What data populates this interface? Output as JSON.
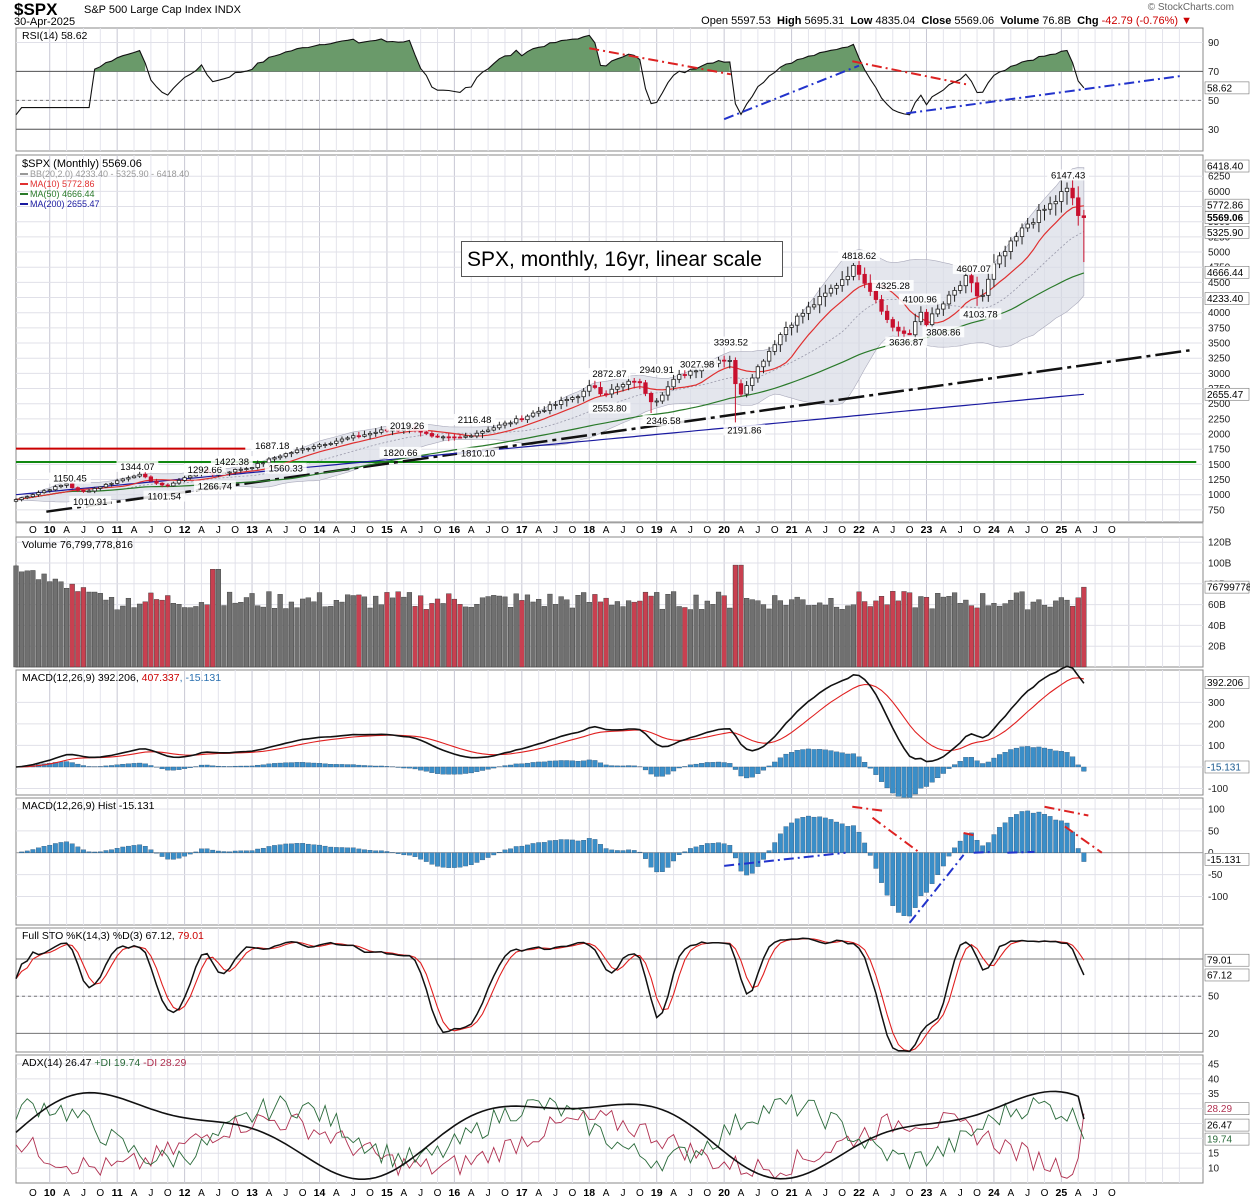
{
  "header": {
    "symbol": "$SPX",
    "description": "S&P 500 Large Cap Index INDX",
    "date": "30-Apr-2025",
    "open_label": "Open",
    "open": "5597.53",
    "high_label": "High",
    "high": "5695.31",
    "low_label": "Low",
    "low": "4835.04",
    "close_label": "Close",
    "close": "5569.06",
    "volume_label": "Volume",
    "volume": "76.8B",
    "chg_label": "Chg",
    "chg": "-42.79 (-0.76%)",
    "logo": "© StockCharts.com"
  },
  "overlay_text": "SPX, monthly, 16yr, linear scale",
  "colors": {
    "up_candle": "#ffffff",
    "down_candle": "#c8102e",
    "ma10": "#e03030",
    "ma50": "#2a7a2a",
    "ma200": "#1a1aa0",
    "bb_fill": "#d8dce6",
    "grid": "#d0d0d8",
    "vol_down": "#c84050",
    "vol_up": "#707070",
    "macd_hist": "#3a8ec8",
    "trend_red": "#dd2222",
    "trend_blue": "#2233cc",
    "resistance": "#cc0000",
    "support": "#118811"
  },
  "chart_data": [
    {
      "type": "line",
      "panel": "rsi",
      "title": "RSI(14) 58.62",
      "yticks": [
        30,
        50,
        70,
        90
      ],
      "ylim": [
        15,
        100
      ],
      "last_label": "58.62",
      "reference_lines": [
        30,
        70
      ]
    },
    {
      "type": "candlestick",
      "panel": "price",
      "title": "$SPX (Monthly) 5569.06",
      "legend": [
        {
          "name": "BB(20,2.0) 4233.40 - 5325.90 - 6418.40",
          "color": "#999999"
        },
        {
          "name": "MA(10) 5772.86",
          "color": "#e03030"
        },
        {
          "name": "MA(50) 4666.44",
          "color": "#2a7a2a"
        },
        {
          "name": "MA(200) 2655.47",
          "color": "#1a1aa0"
        }
      ],
      "ylim": [
        550,
        6600
      ],
      "yticks": [
        750,
        1000,
        1250,
        1500,
        1750,
        2000,
        2250,
        2500,
        2750,
        3000,
        3250,
        3500,
        3750,
        4000,
        4250,
        4500,
        4750,
        5000,
        5250,
        5500,
        5750,
        6000,
        6250
      ],
      "ytick_labels": [
        "750",
        "1000",
        "1250",
        "1500",
        "1750",
        "2000",
        "2250",
        "2500",
        "2750",
        "3000",
        "3250",
        "3500",
        "3750",
        "4000",
        "4250",
        "4500",
        "4750",
        "5000",
        "5250",
        "5500",
        "5750",
        "6000",
        "6250"
      ],
      "right_labels": [
        {
          "value": 6418.4,
          "text": "6418.40",
          "bg": "#ffffff"
        },
        {
          "value": 5772.86,
          "text": "5772.86",
          "bg": "#ffffff"
        },
        {
          "value": 5569.06,
          "text": "5569.06",
          "bg": "#ffffff",
          "bold": true
        },
        {
          "value": 5325.9,
          "text": "5325.90",
          "bg": "#ffffff"
        },
        {
          "value": 4666.44,
          "text": "4666.44",
          "bg": "#ffffff"
        },
        {
          "value": 4233.4,
          "text": "4233.40",
          "bg": "#ffffff"
        },
        {
          "value": 2655.47,
          "text": "2655.47",
          "bg": "#ffffff"
        }
      ],
      "annotations": [
        {
          "x": 2010.3,
          "y": 1150.45,
          "text": "1150.45",
          "pos": "above"
        },
        {
          "x": 2010.6,
          "y": 1010.91,
          "text": "1010.91",
          "pos": "below"
        },
        {
          "x": 2011.3,
          "y": 1344.07,
          "text": "1344.07",
          "pos": "above"
        },
        {
          "x": 2011.7,
          "y": 1101.54,
          "text": "1101.54",
          "pos": "below"
        },
        {
          "x": 2012.3,
          "y": 1292.66,
          "text": "1292.66",
          "pos": "above"
        },
        {
          "x": 2012.45,
          "y": 1266.74,
          "text": "1266.74",
          "pos": "below"
        },
        {
          "x": 2012.7,
          "y": 1422.38,
          "text": "1422.38",
          "pos": "above"
        },
        {
          "x": 2013.3,
          "y": 1687.18,
          "text": "1687.18",
          "pos": "above"
        },
        {
          "x": 2013.5,
          "y": 1560.33,
          "text": "1560.33",
          "pos": "below"
        },
        {
          "x": 2015.3,
          "y": 2019.26,
          "text": "2019.26",
          "pos": "above"
        },
        {
          "x": 2015.2,
          "y": 1820.66,
          "text": "1820.66",
          "pos": "below"
        },
        {
          "x": 2016.3,
          "y": 2116.48,
          "text": "2116.48",
          "pos": "above"
        },
        {
          "x": 2016.35,
          "y": 1810.1,
          "text": "1810.10",
          "pos": "below"
        },
        {
          "x": 2018.3,
          "y": 2872.87,
          "text": "2872.87",
          "pos": "above"
        },
        {
          "x": 2018.3,
          "y": 2553.8,
          "text": "2553.80",
          "pos": "below"
        },
        {
          "x": 2019.0,
          "y": 2940.91,
          "text": "2940.91",
          "pos": "above"
        },
        {
          "x": 2019.1,
          "y": 2346.58,
          "text": "2346.58",
          "pos": "below"
        },
        {
          "x": 2019.6,
          "y": 3027.98,
          "text": "3027.98",
          "pos": "above"
        },
        {
          "x": 2020.1,
          "y": 3393.52,
          "text": "3393.52",
          "pos": "above"
        },
        {
          "x": 2020.3,
          "y": 2191.86,
          "text": "2191.86",
          "pos": "below"
        },
        {
          "x": 2022.0,
          "y": 4818.62,
          "text": "4818.62",
          "pos": "above"
        },
        {
          "x": 2022.5,
          "y": 4325.28,
          "text": "4325.28",
          "pos": "above"
        },
        {
          "x": 2022.9,
          "y": 4100.96,
          "text": "4100.96",
          "pos": "above"
        },
        {
          "x": 2022.7,
          "y": 3636.87,
          "text": "3636.87",
          "pos": "below"
        },
        {
          "x": 2023.25,
          "y": 3808.86,
          "text": "3808.86",
          "pos": "below"
        },
        {
          "x": 2023.7,
          "y": 4607.07,
          "text": "4607.07",
          "pos": "above"
        },
        {
          "x": 2023.8,
          "y": 4103.78,
          "text": "4103.78",
          "pos": "below"
        },
        {
          "x": 2025.1,
          "y": 6147.43,
          "text": "6147.43",
          "pos": "above"
        }
      ],
      "horizontal_lines": [
        {
          "value": 1760,
          "color": "#cc0000",
          "x_end": 2012.9
        },
        {
          "value": 1540,
          "color": "#118811",
          "x_end": 2027
        }
      ],
      "trendline": {
        "x0": 2009.95,
        "y0": 720,
        "x1": 2026.9,
        "y1": 3380
      }
    },
    {
      "type": "bar",
      "panel": "volume",
      "title": "Volume 76,799,778,816",
      "ylim": [
        0,
        125
      ],
      "yticks": [
        20,
        40,
        60,
        80,
        100,
        120
      ],
      "ytick_labels": [
        "20B",
        "40B",
        "60B",
        "80B",
        "100B",
        "120B"
      ],
      "last_label": "76799778",
      "unit": "B"
    },
    {
      "type": "line",
      "panel": "macd",
      "title": "MACD(12,26,9) 392.206, 407.337, -15.131",
      "title_parts": [
        "MACD(12,26,9) 392.206, ",
        "407.337",
        ", -15.131"
      ],
      "ylim": [
        -130,
        450
      ],
      "yticks": [
        -100,
        0,
        100,
        200,
        300
      ],
      "last_labels": [
        "392.206",
        "-15.131"
      ]
    },
    {
      "type": "bar",
      "panel": "macd_hist",
      "title": "MACD(12,26,9) Hist -15.131",
      "ylim": [
        -165,
        125
      ],
      "yticks": [
        -100,
        -50,
        0,
        50,
        100
      ],
      "last_label": "-15.131"
    },
    {
      "type": "line",
      "panel": "sto",
      "title": "Full STO %K(14,3) %D(3) 67.12, 79.01",
      "title_parts": [
        "Full STO %K(14,3) %D(3) 67.12, ",
        "79.01"
      ],
      "ylim": [
        5,
        105
      ],
      "yticks": [
        20,
        50,
        80
      ],
      "last_labels": [
        "79.01",
        "67.12"
      ],
      "reference_lines": [
        20,
        50,
        80
      ]
    },
    {
      "type": "line",
      "panel": "adx",
      "title": "ADX(14) 26.47 +DI 19.74 -DI 28.29",
      "title_parts": [
        "ADX(14) 26.47 ",
        "+DI 19.74",
        " -DI 28.29"
      ],
      "ylim": [
        5,
        48
      ],
      "yticks": [
        10,
        15,
        20,
        25,
        30,
        35,
        40,
        45
      ],
      "last_labels": [
        "28.29",
        "26.47",
        "19.74"
      ]
    }
  ],
  "x_axis": {
    "start": 2009.5,
    "end": 2027.1,
    "year_labels": [
      "10",
      "11",
      "12",
      "13",
      "14",
      "15",
      "16",
      "17",
      "18",
      "19",
      "20",
      "21",
      "22",
      "23",
      "24",
      "25"
    ],
    "month_labels": [
      "A",
      "J",
      "O"
    ]
  }
}
